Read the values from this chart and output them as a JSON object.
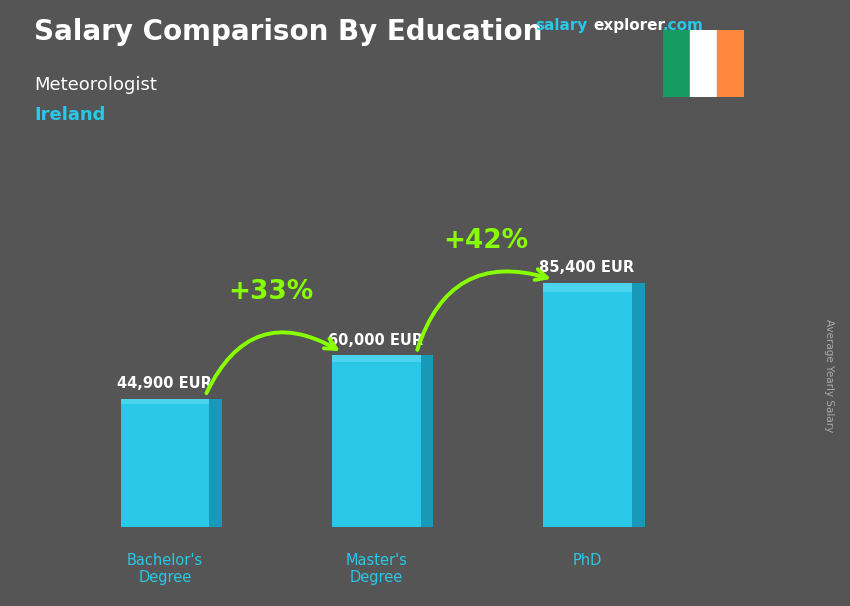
{
  "title": "Salary Comparison By Education",
  "subtitle": "Meteorologist",
  "country": "Ireland",
  "ylabel": "Average Yearly Salary",
  "categories": [
    "Bachelor's\nDegree",
    "Master's\nDegree",
    "PhD"
  ],
  "values": [
    44900,
    60000,
    85400
  ],
  "value_labels": [
    "44,900 EUR",
    "60,000 EUR",
    "85,400 EUR"
  ],
  "bar_color_front": "#29C8E8",
  "bar_color_side": "#1899B8",
  "bar_color_top": "#55D8F0",
  "pct_labels": [
    "+33%",
    "+42%"
  ],
  "pct_label_color": "#88FF00",
  "arrow_color": "#88FF00",
  "background_color": "#555555",
  "title_color": "#ffffff",
  "subtitle_color": "#ffffff",
  "country_color": "#29C8E8",
  "xlabel_color": "#29C8E8",
  "value_label_color": "#ffffff",
  "brand_salary_color": "#29C8E8",
  "brand_explorer_color": "#ffffff",
  "brand_com_color": "#29C8E8",
  "ylabel_color": "#aaaaaa",
  "flag_green": "#169B62",
  "flag_white": "#ffffff",
  "flag_orange": "#FF883E",
  "ylim_max": 110000
}
